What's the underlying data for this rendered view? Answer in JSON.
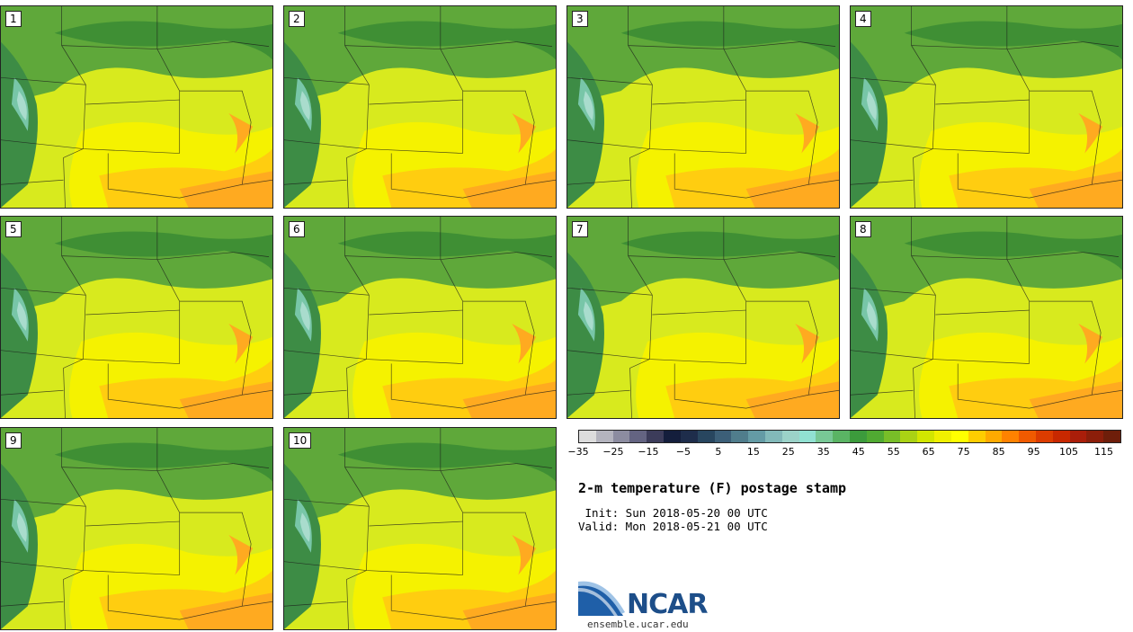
{
  "figure": {
    "title": "2-m temperature (F) postage stamp",
    "init_line": " Init: Sun 2018-05-20 00 UTC",
    "valid_line": "Valid: Mon 2018-05-21 00 UTC",
    "site": "ensemble.ucar.edu",
    "logo_text": "NCAR"
  },
  "members": [
    "1",
    "2",
    "3",
    "4",
    "5",
    "6",
    "7",
    "8",
    "9",
    "10"
  ],
  "colorbar": {
    "tick_labels": [
      "−35",
      "−25",
      "−15",
      "−5",
      "5",
      "15",
      "25",
      "35",
      "45",
      "55",
      "65",
      "75",
      "85",
      "95",
      "105",
      "115"
    ],
    "range_f": [
      -35,
      120
    ],
    "colors": [
      "#dcdcdc",
      "#b4b4be",
      "#8c8ca0",
      "#646482",
      "#3c3c5a",
      "#141e3c",
      "#1e2d4b",
      "#28465f",
      "#3c5f78",
      "#507d8c",
      "#649ba5",
      "#82b9b9",
      "#9bd2c8",
      "#91e1d2",
      "#78c896",
      "#5ab464",
      "#3c9b3c",
      "#50aa32",
      "#78be28",
      "#aad214",
      "#d2e600",
      "#f0f000",
      "#ffff00",
      "#ffcd00",
      "#ffaa00",
      "#ff8200",
      "#f05a00",
      "#dc3c00",
      "#c82800",
      "#aa1e0a",
      "#8c1e0a",
      "#6e1e0a"
    ]
  }
}
